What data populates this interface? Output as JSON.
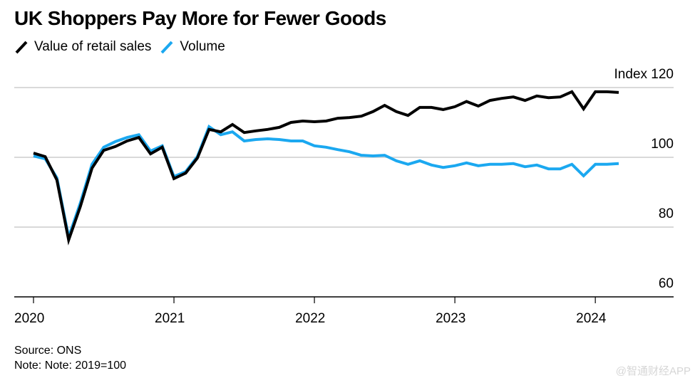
{
  "title": "UK Shoppers Pay More for Fewer Goods",
  "legend": [
    {
      "label": "Value of retail sales",
      "color": "#000000"
    },
    {
      "label": "Volume",
      "color": "#1ba8f0"
    }
  ],
  "footer": {
    "source": "Source: ONS",
    "note": "Note: Note: 2019=100"
  },
  "watermark": "@智通财经APP",
  "chart_data": {
    "type": "line",
    "title": "UK Shoppers Pay More for Fewer Goods",
    "xlabel": "",
    "ylabel": "Index",
    "y_axis_position": "right",
    "ylim": [
      60,
      120
    ],
    "yticks": [
      60,
      80,
      100,
      120
    ],
    "ytick_labels": [
      "60",
      "80",
      "100",
      "Index 120"
    ],
    "xticks": [
      "2020",
      "2021",
      "2022",
      "2023",
      "2024"
    ],
    "x_start": "2020-01",
    "x_frequency": "monthly",
    "grid": "horizontal",
    "legend_position": "top-left",
    "series": [
      {
        "name": "Value of retail sales",
        "color": "#000000",
        "values": [
          101.2,
          100.2,
          93.5,
          76.3,
          85.9,
          96.9,
          102.0,
          103.1,
          104.7,
          105.7,
          101.0,
          102.9,
          93.9,
          95.5,
          99.8,
          108.0,
          107.3,
          109.4,
          107.1,
          107.6,
          108.0,
          108.6,
          110.0,
          110.4,
          110.2,
          110.4,
          111.2,
          111.4,
          111.8,
          113.1,
          114.9,
          113.1,
          112.0,
          114.3,
          114.3,
          113.7,
          114.5,
          116.0,
          114.7,
          116.3,
          116.9,
          117.3,
          116.3,
          117.6,
          117.1,
          117.3,
          118.8,
          113.9,
          118.8,
          118.8,
          118.6
        ]
      },
      {
        "name": "Volume",
        "color": "#1ba8f0",
        "values": [
          100.4,
          99.6,
          94.1,
          77.1,
          86.9,
          98.0,
          102.9,
          104.5,
          105.7,
          106.5,
          101.8,
          103.3,
          94.5,
          95.9,
          100.2,
          108.8,
          106.5,
          107.3,
          104.7,
          105.1,
          105.3,
          105.1,
          104.7,
          104.7,
          103.3,
          102.9,
          102.2,
          101.6,
          100.6,
          100.4,
          100.6,
          99.0,
          98.0,
          99.0,
          97.8,
          97.1,
          97.6,
          98.4,
          97.6,
          98.0,
          98.0,
          98.2,
          97.3,
          97.8,
          96.7,
          96.7,
          98.0,
          94.7,
          98.0,
          98.0,
          98.2
        ]
      }
    ]
  }
}
